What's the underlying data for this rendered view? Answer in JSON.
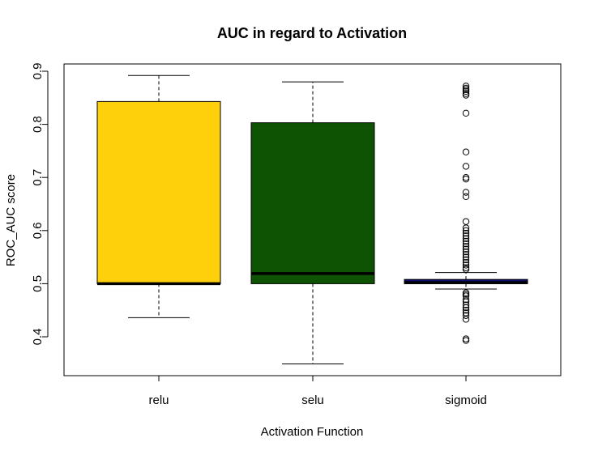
{
  "chart_data": {
    "type": "boxplot",
    "title": "AUC in regard to Activation",
    "xlabel": "Activation Function",
    "ylabel": "ROC_AUC score",
    "ylim": [
      0.33,
      0.92
    ],
    "yticks": [
      0.4,
      0.5,
      0.6,
      0.7,
      0.8,
      0.9
    ],
    "ytick_labels": [
      "0.4",
      "0.5",
      "0.6",
      "0.7",
      "0.8",
      "0.9"
    ],
    "grid": false,
    "categories": [
      "relu",
      "selu",
      "sigmoid"
    ],
    "boxes": [
      {
        "category": "relu",
        "color": "#FDD00B",
        "whisker_low": 0.436,
        "q1": 0.5,
        "median": 0.5,
        "q3": 0.843,
        "whisker_high": 0.892,
        "outliers": []
      },
      {
        "category": "selu",
        "color": "#0D5303",
        "whisker_low": 0.349,
        "q1": 0.5,
        "median": 0.519,
        "q3": 0.803,
        "whisker_high": 0.88,
        "outliers": []
      },
      {
        "category": "sigmoid",
        "color": "#0B0B6E",
        "whisker_low": 0.49,
        "q1": 0.5,
        "median": 0.502,
        "q3": 0.508,
        "whisker_high": 0.521,
        "outliers": [
          0.872,
          0.868,
          0.865,
          0.862,
          0.858,
          0.855,
          0.821,
          0.748,
          0.721,
          0.7,
          0.697,
          0.672,
          0.664,
          0.617,
          0.605,
          0.6,
          0.595,
          0.59,
          0.585,
          0.58,
          0.575,
          0.57,
          0.565,
          0.56,
          0.555,
          0.55,
          0.545,
          0.54,
          0.535,
          0.53,
          0.527,
          0.483,
          0.48,
          0.477,
          0.47,
          0.466,
          0.46,
          0.455,
          0.45,
          0.445,
          0.44,
          0.433,
          0.396,
          0.393
        ]
      }
    ]
  }
}
